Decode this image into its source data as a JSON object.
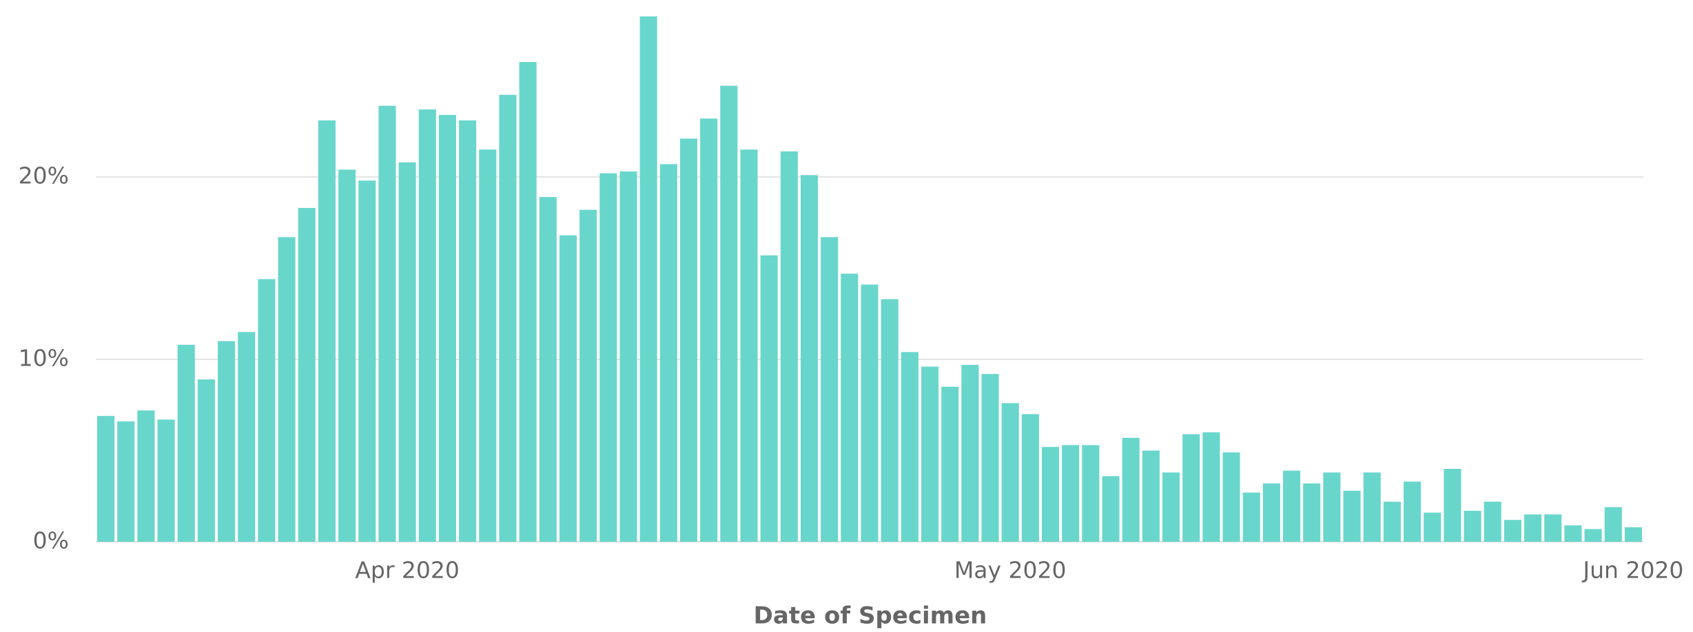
{
  "chart_data": {
    "type": "bar",
    "x_label": "Date of Specimen",
    "categories": [
      null,
      null,
      null,
      null,
      null,
      null,
      null,
      null,
      null,
      null,
      null,
      null,
      null,
      null,
      null,
      "Apr 2020",
      null,
      null,
      null,
      null,
      null,
      null,
      null,
      null,
      null,
      null,
      null,
      null,
      null,
      null,
      null,
      null,
      null,
      null,
      null,
      null,
      null,
      null,
      null,
      null,
      null,
      null,
      null,
      null,
      null,
      "May 2020",
      null,
      null,
      null,
      null,
      null,
      null,
      null,
      null,
      null,
      null,
      null,
      null,
      null,
      null,
      null,
      null,
      null,
      null,
      null,
      null,
      null,
      null,
      null,
      null,
      null,
      null,
      null,
      null,
      null,
      null,
      "Jun 2020"
    ],
    "values": [
      6.9,
      6.6,
      7.2,
      6.7,
      10.8,
      8.9,
      11.0,
      11.5,
      14.4,
      16.7,
      18.3,
      23.1,
      20.4,
      19.8,
      23.9,
      20.8,
      23.7,
      23.4,
      23.1,
      21.5,
      24.5,
      26.3,
      18.9,
      16.8,
      18.2,
      20.2,
      20.3,
      28.8,
      20.7,
      22.1,
      23.2,
      25.0,
      21.5,
      15.7,
      21.4,
      20.1,
      16.7,
      14.7,
      14.1,
      13.3,
      10.4,
      9.6,
      8.5,
      9.7,
      9.2,
      7.6,
      7.0,
      5.2,
      5.3,
      5.3,
      3.6,
      5.7,
      5.0,
      3.8,
      5.9,
      6.0,
      4.9,
      2.7,
      3.2,
      3.9,
      3.2,
      3.8,
      2.8,
      3.8,
      2.2,
      3.3,
      1.6,
      4.0,
      1.7,
      2.2,
      1.2,
      1.5,
      1.5,
      0.9,
      0.7,
      1.9,
      0.8
    ],
    "color": "#69d6cc",
    "ylim": [
      0,
      29
    ],
    "yticks": [
      {
        "value": 0,
        "label": "0%"
      },
      {
        "value": 10,
        "label": "10%"
      },
      {
        "value": 20,
        "label": "20%"
      }
    ],
    "grid": true
  }
}
